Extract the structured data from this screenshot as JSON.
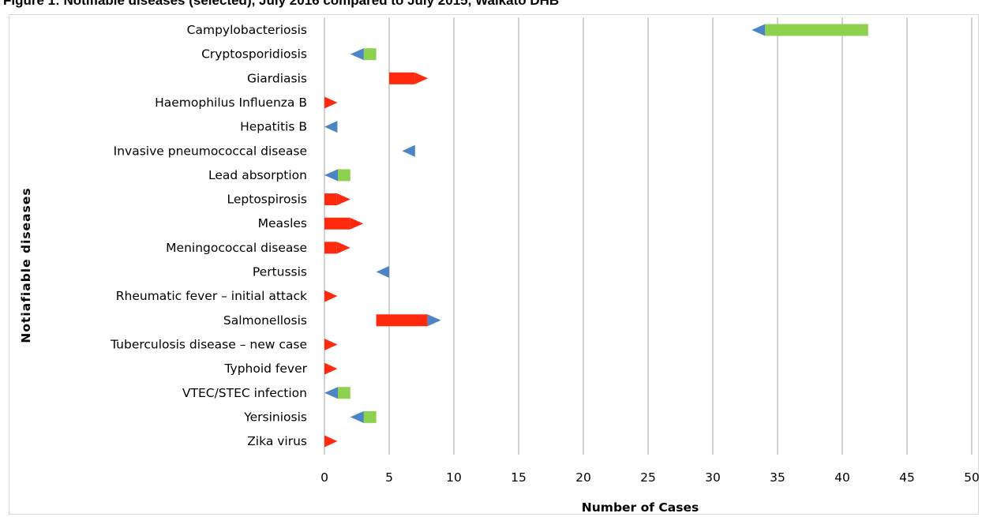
{
  "figure_title": "Figure 1: Notifiable diseases (selected), July 2016 compared to July 2015, Waikato DHB",
  "chart_data": {
    "type": "arrow-bar",
    "title": "Figure 1: Notifiable diseases (selected), July 2016 compared to July 2015, Waikato DHB",
    "xlabel": "Number of Cases",
    "ylabel": "Notiafiable diseases",
    "xlim": [
      0,
      50
    ],
    "xticks": [
      "0",
      "5",
      "10",
      "15",
      "20",
      "25",
      "30",
      "35",
      "40",
      "45",
      "50"
    ],
    "grid": "vertical",
    "colors": {
      "increase": "#ff2a0d",
      "decrease": "#8dd14f",
      "arrow_blue": "#4d84c4",
      "grid": "#a6a6a6"
    },
    "categories": [
      "Campylobacteriosis",
      "Cryptosporidiosis",
      "Giardiasis",
      "Haemophilus Influenza B",
      "Hepatitis B",
      "Invasive pneumococcal disease",
      "Lead absorption",
      "Leptospirosis",
      "Measles",
      "Meningococcal disease",
      "Pertussis",
      "Rheumatic fever – initial attack",
      "Salmonellosis",
      "Tuberculosis disease – new case",
      "Typhoid fever",
      "VTEC/STEC infection",
      "Yersiniosis",
      "Zika virus"
    ],
    "series": [
      {
        "values": [
          42,
          4,
          5,
          0,
          1,
          7,
          2,
          0,
          0,
          0,
          5,
          0,
          4,
          0,
          0,
          2,
          4,
          0
        ]
      },
      {
        "values": [
          33,
          2,
          8,
          1,
          0,
          6,
          0,
          2,
          3,
          2,
          4,
          1,
          9,
          1,
          1,
          0,
          2,
          1
        ]
      }
    ]
  }
}
